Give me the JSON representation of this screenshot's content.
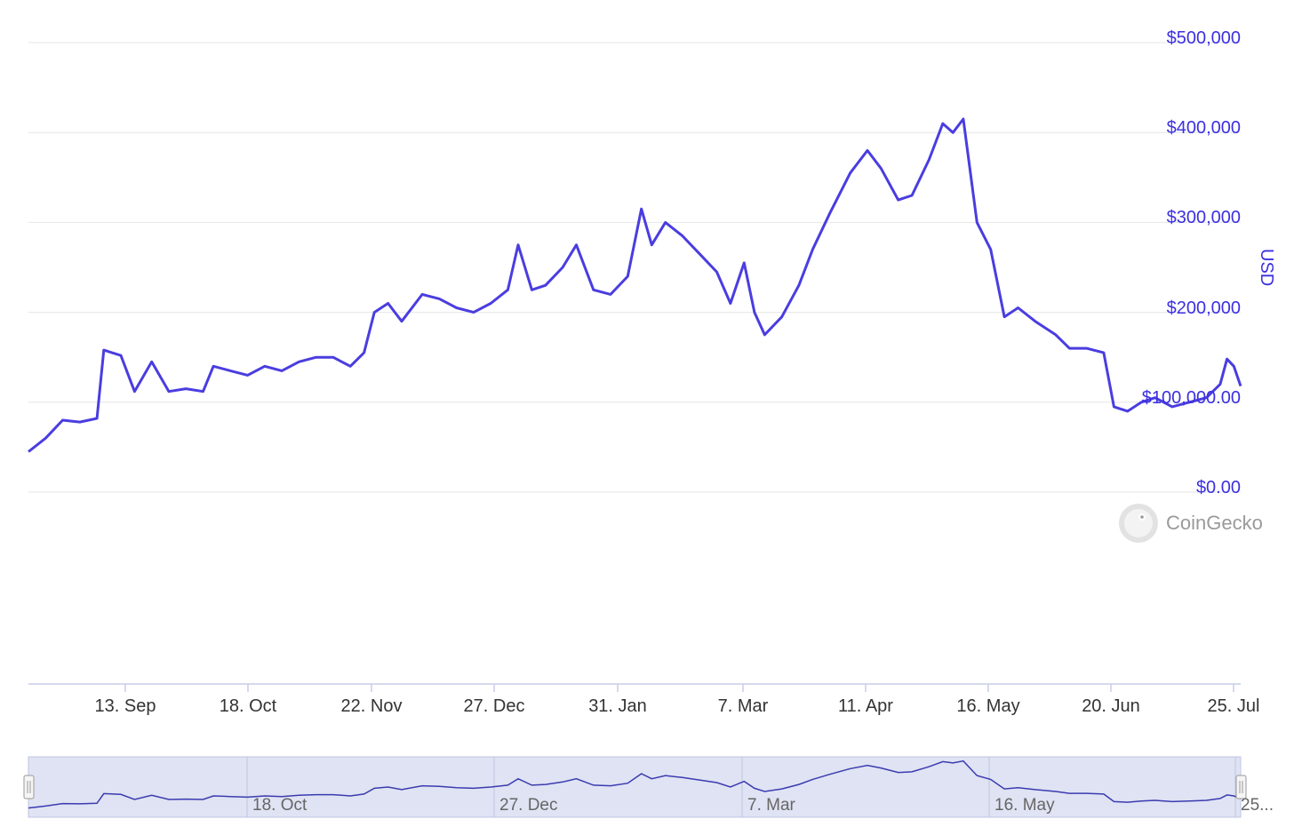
{
  "chart_data": {
    "type": "line",
    "title": "",
    "xlabel": "",
    "ylabel": "USD",
    "ylim": [
      0,
      500000
    ],
    "y_ticks": [
      "$500,000",
      "$400,000",
      "$300,000",
      "$200,000",
      "$100,000.00",
      "$0.00"
    ],
    "y_tick_values": [
      500000,
      400000,
      300000,
      200000,
      100000,
      0
    ],
    "x_ticks": [
      "13. Sep",
      "18. Oct",
      "22. Nov",
      "27. Dec",
      "31. Jan",
      "7. Mar",
      "11. Apr",
      "16. May",
      "20. Jun",
      "25. Jul"
    ],
    "navigator_labels": [
      "18. Oct",
      "27. Dec",
      "7. Mar",
      "16. May",
      "25..."
    ],
    "x_start": "2020-08-05",
    "x_end": "2021-07-25",
    "grid": true,
    "line_color": "#4a3de0",
    "series": [
      {
        "name": "",
        "points": [
          [
            "2020-08-05",
            45000
          ],
          [
            "2020-08-10",
            60000
          ],
          [
            "2020-08-15",
            80000
          ],
          [
            "2020-08-20",
            78000
          ],
          [
            "2020-08-25",
            82000
          ],
          [
            "2020-08-27",
            158000
          ],
          [
            "2020-09-01",
            152000
          ],
          [
            "2020-09-05",
            112000
          ],
          [
            "2020-09-10",
            145000
          ],
          [
            "2020-09-15",
            112000
          ],
          [
            "2020-09-20",
            115000
          ],
          [
            "2020-09-25",
            112000
          ],
          [
            "2020-09-28",
            140000
          ],
          [
            "2020-10-03",
            135000
          ],
          [
            "2020-10-08",
            130000
          ],
          [
            "2020-10-13",
            140000
          ],
          [
            "2020-10-18",
            135000
          ],
          [
            "2020-10-23",
            145000
          ],
          [
            "2020-10-28",
            150000
          ],
          [
            "2020-11-02",
            150000
          ],
          [
            "2020-11-07",
            140000
          ],
          [
            "2020-11-11",
            155000
          ],
          [
            "2020-11-14",
            200000
          ],
          [
            "2020-11-18",
            210000
          ],
          [
            "2020-11-22",
            190000
          ],
          [
            "2020-11-28",
            220000
          ],
          [
            "2020-12-03",
            215000
          ],
          [
            "2020-12-08",
            205000
          ],
          [
            "2020-12-13",
            200000
          ],
          [
            "2020-12-18",
            210000
          ],
          [
            "2020-12-23",
            225000
          ],
          [
            "2020-12-26",
            275000
          ],
          [
            "2020-12-30",
            225000
          ],
          [
            "2021-01-03",
            230000
          ],
          [
            "2021-01-08",
            250000
          ],
          [
            "2021-01-12",
            275000
          ],
          [
            "2021-01-17",
            225000
          ],
          [
            "2021-01-22",
            220000
          ],
          [
            "2021-01-27",
            240000
          ],
          [
            "2021-01-31",
            315000
          ],
          [
            "2021-02-03",
            275000
          ],
          [
            "2021-02-07",
            300000
          ],
          [
            "2021-02-12",
            285000
          ],
          [
            "2021-02-17",
            265000
          ],
          [
            "2021-02-22",
            245000
          ],
          [
            "2021-02-26",
            210000
          ],
          [
            "2021-03-02",
            255000
          ],
          [
            "2021-03-05",
            200000
          ],
          [
            "2021-03-08",
            175000
          ],
          [
            "2021-03-13",
            195000
          ],
          [
            "2021-03-18",
            230000
          ],
          [
            "2021-03-22",
            270000
          ],
          [
            "2021-03-27",
            310000
          ],
          [
            "2021-04-02",
            355000
          ],
          [
            "2021-04-07",
            380000
          ],
          [
            "2021-04-11",
            360000
          ],
          [
            "2021-04-16",
            325000
          ],
          [
            "2021-04-20",
            330000
          ],
          [
            "2021-04-25",
            370000
          ],
          [
            "2021-04-29",
            410000
          ],
          [
            "2021-05-02",
            400000
          ],
          [
            "2021-05-05",
            415000
          ],
          [
            "2021-05-09",
            300000
          ],
          [
            "2021-05-13",
            270000
          ],
          [
            "2021-05-17",
            195000
          ],
          [
            "2021-05-21",
            205000
          ],
          [
            "2021-05-26",
            190000
          ],
          [
            "2021-06-01",
            175000
          ],
          [
            "2021-06-05",
            160000
          ],
          [
            "2021-06-10",
            160000
          ],
          [
            "2021-06-15",
            155000
          ],
          [
            "2021-06-18",
            95000
          ],
          [
            "2021-06-22",
            90000
          ],
          [
            "2021-06-26",
            100000
          ],
          [
            "2021-06-30",
            105000
          ],
          [
            "2021-07-05",
            95000
          ],
          [
            "2021-07-10",
            100000
          ],
          [
            "2021-07-15",
            105000
          ],
          [
            "2021-07-19",
            120000
          ],
          [
            "2021-07-21",
            148000
          ],
          [
            "2021-07-23",
            140000
          ],
          [
            "2021-07-25",
            118000
          ]
        ]
      }
    ]
  },
  "watermark": "CoinGecko",
  "watermark_icon": "gecko-logo-icon"
}
